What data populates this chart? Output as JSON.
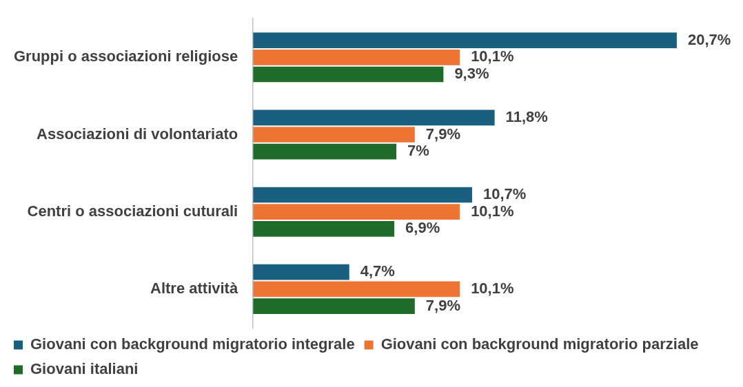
{
  "chart_data": {
    "type": "bar",
    "orientation": "horizontal",
    "categories": [
      "Gruppi o associazioni religiose",
      "Associazioni di volontariato",
      "Centri o associazioni cuturali",
      "Altre attività"
    ],
    "series": [
      {
        "name": "Giovani con background migratorio integrale",
        "color": "#1a5f80",
        "values": [
          20.7,
          11.8,
          10.7,
          4.7
        ],
        "value_labels": [
          "20,7%",
          "11,8%",
          "10,7%",
          "4,7%"
        ]
      },
      {
        "name": "Giovani con background migratorio parziale",
        "color": "#ed7433",
        "values": [
          10.1,
          7.9,
          10.1,
          10.1
        ],
        "value_labels": [
          "10,1%",
          "7,9%",
          "10,1%",
          "10,1%"
        ]
      },
      {
        "name": "Giovani italiani",
        "color": "#1e6b2a",
        "values": [
          9.3,
          7,
          6.9,
          7.9
        ],
        "value_labels": [
          "9,3%",
          "7%",
          "6,9%",
          "7,9%"
        ]
      }
    ],
    "legend": "bottom"
  }
}
